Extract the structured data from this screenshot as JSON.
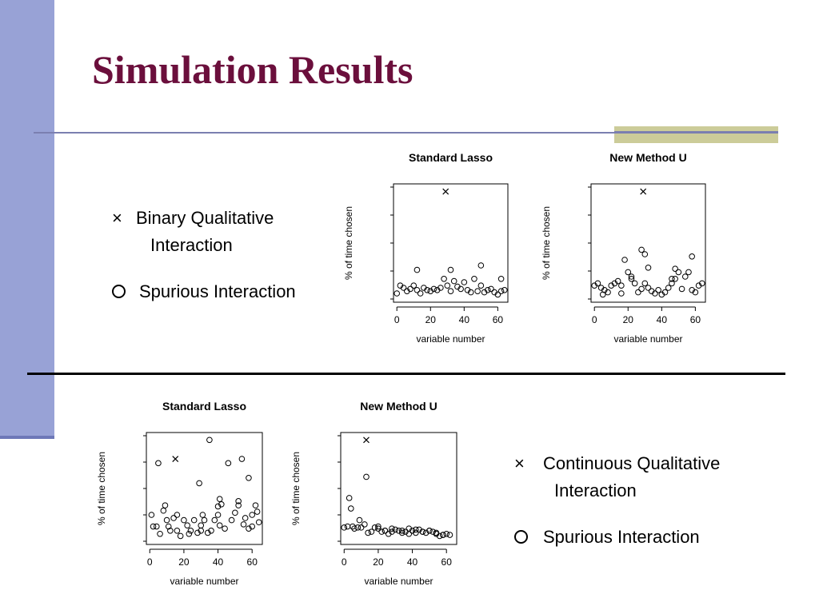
{
  "slide": {
    "title": "Simulation Results",
    "colors": {
      "sidebar": "#98a2d6",
      "title": "#6b0f3c",
      "accent": "#cccc99"
    }
  },
  "legend_top": {
    "cross_icon": "×",
    "cross_label_line1": "Binary Qualitative",
    "cross_label_line2": "Interaction",
    "circle_label": "Spurious Interaction"
  },
  "legend_bottom": {
    "cross_icon": "×",
    "cross_label_line1": "Continuous Qualitative",
    "cross_label_line2": "Interaction",
    "circle_label": "Spurious Interaction"
  },
  "chart_data": [
    {
      "type": "scatter",
      "title": "Standard Lasso",
      "xlabel": "variable number",
      "ylabel": "% of time chosen",
      "xlim": [
        -2,
        66
      ],
      "ylim": [
        0,
        100
      ],
      "xticks": [
        0,
        20,
        40,
        60
      ],
      "series": [
        {
          "marker": "circle",
          "points": [
            [
              0,
              5
            ],
            [
              2,
              12
            ],
            [
              4,
              10
            ],
            [
              6,
              7
            ],
            [
              8,
              9
            ],
            [
              10,
              12
            ],
            [
              12,
              8
            ],
            [
              14,
              5
            ],
            [
              16,
              10
            ],
            [
              18,
              8
            ],
            [
              20,
              7
            ],
            [
              22,
              9
            ],
            [
              24,
              8
            ],
            [
              26,
              10
            ],
            [
              28,
              18
            ],
            [
              30,
              12
            ],
            [
              32,
              7
            ],
            [
              34,
              16
            ],
            [
              36,
              11
            ],
            [
              38,
              9
            ],
            [
              40,
              15
            ],
            [
              42,
              8
            ],
            [
              44,
              6
            ],
            [
              46,
              18
            ],
            [
              48,
              7
            ],
            [
              50,
              12
            ],
            [
              52,
              6
            ],
            [
              54,
              8
            ],
            [
              56,
              9
            ],
            [
              58,
              6
            ],
            [
              60,
              4
            ],
            [
              62,
              7
            ],
            [
              64,
              8
            ],
            [
              12,
              26
            ],
            [
              32,
              26
            ],
            [
              50,
              30
            ],
            [
              62,
              18
            ]
          ]
        },
        {
          "marker": "cross",
          "points": [
            [
              29,
              96
            ]
          ]
        }
      ]
    },
    {
      "type": "scatter",
      "title": "New Method U",
      "xlabel": "variable number",
      "ylabel": "% of time chosen",
      "xlim": [
        -2,
        66
      ],
      "ylim": [
        0,
        100
      ],
      "xticks": [
        0,
        20,
        40,
        60
      ],
      "series": [
        {
          "marker": "circle",
          "points": [
            [
              0,
              12
            ],
            [
              2,
              14
            ],
            [
              4,
              10
            ],
            [
              5,
              4
            ],
            [
              6,
              8
            ],
            [
              8,
              6
            ],
            [
              10,
              12
            ],
            [
              12,
              14
            ],
            [
              14,
              16
            ],
            [
              16,
              12
            ],
            [
              18,
              35
            ],
            [
              20,
              24
            ],
            [
              22,
              20
            ],
            [
              24,
              14
            ],
            [
              26,
              6
            ],
            [
              28,
              9
            ],
            [
              30,
              14
            ],
            [
              32,
              10
            ],
            [
              34,
              7
            ],
            [
              36,
              5
            ],
            [
              38,
              8
            ],
            [
              40,
              4
            ],
            [
              42,
              6
            ],
            [
              44,
              10
            ],
            [
              46,
              14
            ],
            [
              48,
              18
            ],
            [
              50,
              24
            ],
            [
              52,
              9
            ],
            [
              54,
              20
            ],
            [
              56,
              24
            ],
            [
              58,
              8
            ],
            [
              60,
              6
            ],
            [
              62,
              12
            ],
            [
              64,
              14
            ],
            [
              16,
              5
            ],
            [
              22,
              18
            ],
            [
              28,
              44
            ],
            [
              30,
              40
            ],
            [
              32,
              28
            ],
            [
              46,
              18
            ],
            [
              48,
              27
            ],
            [
              58,
              38
            ]
          ]
        },
        {
          "marker": "cross",
          "points": [
            [
              29,
              96
            ]
          ]
        }
      ]
    },
    {
      "type": "scatter",
      "title": "Standard Lasso",
      "xlabel": "variable number",
      "ylabel": "% of time chosen",
      "xlim": [
        -2,
        66
      ],
      "ylim": [
        0,
        100
      ],
      "xticks": [
        0,
        20,
        40,
        60
      ],
      "series": [
        {
          "marker": "circle",
          "points": [
            [
              1,
              25
            ],
            [
              2,
              14
            ],
            [
              4,
              14
            ],
            [
              5,
              74
            ],
            [
              6,
              7
            ],
            [
              8,
              29
            ],
            [
              9,
              34
            ],
            [
              10,
              20
            ],
            [
              11,
              14
            ],
            [
              12,
              10
            ],
            [
              14,
              22
            ],
            [
              16,
              25
            ],
            [
              18,
              5
            ],
            [
              20,
              20
            ],
            [
              22,
              15
            ],
            [
              23,
              7
            ],
            [
              24,
              10
            ],
            [
              26,
              20
            ],
            [
              28,
              8
            ],
            [
              29,
              55
            ],
            [
              30,
              15
            ],
            [
              31,
              25
            ],
            [
              32,
              20
            ],
            [
              34,
              8
            ],
            [
              35,
              96
            ],
            [
              36,
              10
            ],
            [
              38,
              20
            ],
            [
              40,
              25
            ],
            [
              41,
              15
            ],
            [
              42,
              35
            ],
            [
              44,
              12
            ],
            [
              46,
              74
            ],
            [
              48,
              20
            ],
            [
              50,
              27
            ],
            [
              52,
              34
            ],
            [
              54,
              78
            ],
            [
              55,
              16
            ],
            [
              56,
              22
            ],
            [
              58,
              60
            ],
            [
              60,
              25
            ],
            [
              62,
              34
            ],
            [
              63,
              28
            ],
            [
              64,
              18
            ],
            [
              41,
              40
            ],
            [
              40,
              33
            ],
            [
              52,
              38
            ],
            [
              16,
              10
            ],
            [
              30,
              10
            ],
            [
              58,
              12
            ],
            [
              60,
              14
            ]
          ]
        },
        {
          "marker": "cross",
          "points": [
            [
              15,
              78
            ]
          ]
        }
      ]
    },
    {
      "type": "scatter",
      "title": "New Method U",
      "xlabel": "variable number",
      "ylabel": "% of time chosen",
      "xlim": [
        -2,
        66
      ],
      "ylim": [
        0,
        100
      ],
      "xticks": [
        0,
        20,
        40,
        60
      ],
      "series": [
        {
          "marker": "circle",
          "points": [
            [
              0,
              13
            ],
            [
              2,
              14
            ],
            [
              3,
              41
            ],
            [
              4,
              31
            ],
            [
              5,
              14
            ],
            [
              6,
              12
            ],
            [
              8,
              13
            ],
            [
              9,
              20
            ],
            [
              10,
              13
            ],
            [
              12,
              16
            ],
            [
              13,
              61
            ],
            [
              14,
              8
            ],
            [
              16,
              9
            ],
            [
              18,
              13
            ],
            [
              20,
              14
            ],
            [
              22,
              9
            ],
            [
              24,
              10
            ],
            [
              26,
              7
            ],
            [
              28,
              9
            ],
            [
              30,
              11
            ],
            [
              32,
              10
            ],
            [
              34,
              8
            ],
            [
              36,
              9
            ],
            [
              38,
              7
            ],
            [
              40,
              10
            ],
            [
              42,
              8
            ],
            [
              44,
              11
            ],
            [
              46,
              9
            ],
            [
              48,
              8
            ],
            [
              50,
              10
            ],
            [
              52,
              9
            ],
            [
              54,
              7
            ],
            [
              56,
              5
            ],
            [
              58,
              6
            ],
            [
              60,
              7
            ],
            [
              62,
              6
            ],
            [
              20,
              12
            ],
            [
              24,
              10
            ],
            [
              28,
              12
            ],
            [
              34,
              10
            ],
            [
              38,
              12
            ],
            [
              42,
              11
            ],
            [
              46,
              9
            ],
            [
              50,
              10
            ],
            [
              54,
              8
            ],
            [
              58,
              6
            ]
          ]
        },
        {
          "marker": "cross",
          "points": [
            [
              13,
              96
            ]
          ]
        }
      ]
    }
  ]
}
